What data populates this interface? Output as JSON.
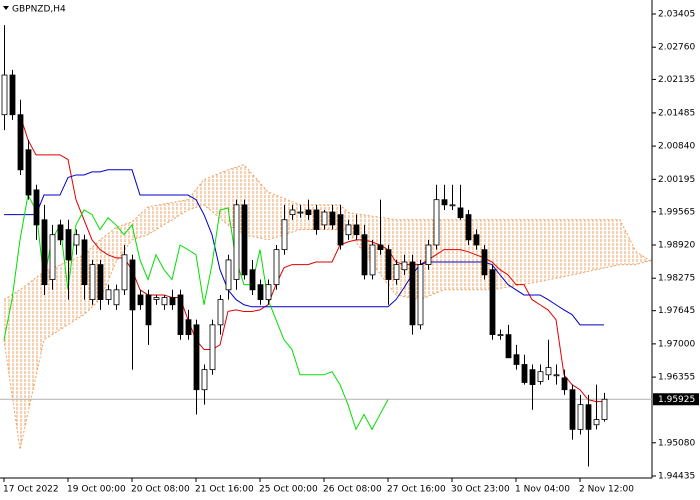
{
  "chart_data": {
    "type": "candlestick",
    "title": "GBPNZD,H4",
    "categories": [
      "17 Oct 2022",
      null,
      null,
      null,
      null,
      null,
      null,
      null,
      "19 Oct 00:00",
      null,
      null,
      null,
      null,
      null,
      null,
      null,
      "20 Oct 08:00",
      null,
      null,
      null,
      null,
      null,
      null,
      null,
      "21 Oct 16:00",
      null,
      null,
      null,
      null,
      null,
      null,
      null,
      "25 Oct 00:00",
      null,
      null,
      null,
      null,
      null,
      null,
      null,
      "26 Oct 08:00",
      null,
      null,
      null,
      null,
      null,
      null,
      null,
      "27 Oct 16:00",
      null,
      null,
      null,
      null,
      null,
      null,
      null,
      "30 Oct 23:00",
      null,
      null,
      null,
      null,
      null,
      null,
      null,
      "1 Nov 04:00",
      null,
      null,
      null,
      null,
      null,
      null,
      null,
      "2 Nov 12:00",
      null,
      null,
      null
    ],
    "open": [
      2.0145,
      2.0222,
      2.0145,
      2.0077,
      1.9999,
      1.9941,
      1.9825,
      1.9931,
      1.9922,
      1.9892,
      1.9902,
      1.9786,
      1.9854,
      1.9786,
      1.9776,
      1.9805,
      1.9863,
      1.9795,
      1.9795,
      1.9786,
      1.9776,
      1.979,
      1.9795,
      1.9747,
      1.9737,
      1.9611,
      1.965,
      1.9737,
      1.9805,
      1.9825,
      1.997,
      1.9844,
      1.9815,
      1.9786,
      1.9815,
      1.9883,
      1.9951,
      1.9956,
      1.996,
      1.996,
      1.9931,
      1.9956,
      1.9951,
      1.9912,
      1.9931,
      1.9912,
      1.9834,
      1.9892,
      1.9883,
      1.9825,
      1.9844,
      1.9859,
      1.9737,
      1.9854,
      1.9892,
      1.998,
      1.997,
      1.9964,
      1.9951,
      1.9912,
      1.9883,
      1.9844,
      1.9718,
      1.9718,
      1.9679,
      1.966,
      1.965,
      1.9627,
      1.964,
      1.964,
      1.9634,
      1.9611,
      1.9534,
      1.9582,
      1.9543,
      1.9553
    ],
    "high": [
      2.0319,
      2.0232,
      2.0174,
      2.0096,
      2.0009,
      1.997,
      1.9931,
      1.9941,
      1.9941,
      1.9922,
      1.9912,
      1.9863,
      1.9863,
      1.9815,
      1.9815,
      1.9892,
      1.9873,
      1.9805,
      1.9805,
      1.9795,
      1.9795,
      1.9805,
      1.9805,
      1.9766,
      1.9747,
      1.966,
      1.9747,
      1.9795,
      1.9873,
      1.998,
      1.998,
      1.9863,
      1.9825,
      1.9825,
      1.9892,
      1.997,
      1.997,
      1.997,
      1.998,
      1.997,
      1.996,
      1.997,
      1.997,
      1.9941,
      1.9951,
      1.9931,
      1.9902,
      1.998,
      1.9892,
      1.9863,
      1.9873,
      1.9873,
      1.9863,
      1.9902,
      2.0009,
      2.0009,
      2.0009,
      2.0009,
      1.996,
      1.9922,
      1.9892,
      1.9854,
      1.9728,
      1.9737,
      1.9698,
      1.9679,
      1.966,
      1.966,
      1.9708,
      1.966,
      1.965,
      1.9621,
      1.9601,
      1.9601,
      1.9621,
      1.9605
    ],
    "low": [
      2.0115,
      2.0135,
      2.0028,
      1.998,
      1.9902,
      1.9795,
      1.9805,
      1.9892,
      1.9786,
      1.9873,
      1.9786,
      1.9776,
      1.9766,
      1.9776,
      1.9766,
      1.9795,
      1.965,
      1.9766,
      1.9698,
      1.9776,
      1.9766,
      1.9766,
      1.9708,
      1.9708,
      1.9563,
      1.9582,
      1.964,
      1.9718,
      1.9786,
      1.9805,
      1.9825,
      1.9795,
      1.9776,
      1.9776,
      1.9805,
      1.9873,
      1.9941,
      1.9945,
      1.9941,
      1.9912,
      1.9922,
      1.9922,
      1.9883,
      1.9902,
      1.9902,
      1.9825,
      1.9825,
      1.9873,
      1.9776,
      1.9815,
      1.9834,
      1.9718,
      1.9728,
      1.9844,
      1.9883,
      1.996,
      1.996,
      1.9941,
      1.9892,
      1.9883,
      1.9825,
      1.9708,
      1.9708,
      1.9673,
      1.965,
      1.9621,
      1.9572,
      1.9621,
      1.963,
      1.9621,
      1.9601,
      1.9514,
      1.9524,
      1.9462,
      1.9534,
      1.9549
    ],
    "close": [
      2.0222,
      2.0145,
      2.0038,
      1.9989,
      1.9931,
      1.9815,
      1.9912,
      1.9902,
      1.9863,
      1.9912,
      1.9815,
      1.9854,
      1.9786,
      1.9805,
      1.9805,
      1.9873,
      1.9766,
      1.9776,
      1.9737,
      1.979,
      1.979,
      1.9776,
      1.9718,
      1.9718,
      1.9611,
      1.965,
      1.9737,
      1.9786,
      1.9863,
      1.997,
      1.9834,
      1.9805,
      1.9786,
      1.9815,
      1.9883,
      1.9941,
      1.996,
      1.9956,
      1.9951,
      1.9922,
      1.9956,
      1.9931,
      1.9892,
      1.9931,
      1.9912,
      1.9834,
      1.9892,
      1.9883,
      1.9825,
      1.9854,
      1.9859,
      1.9737,
      1.9854,
      1.9892,
      1.998,
      1.997,
      1.997,
      1.9945,
      1.9902,
      1.9892,
      1.9834,
      1.9718,
      1.9718,
      1.9673,
      1.966,
      1.9625,
      1.9621,
      1.9646,
      1.9654,
      1.964,
      1.9611,
      1.9534,
      1.9582,
      1.9534,
      1.9553,
      1.95925
    ],
    "lines": [
      {
        "color": "#e00000",
        "values": [
          null,
          null,
          2.0145,
          2.0096,
          2.0067,
          2.0067,
          2.0067,
          2.0067,
          2.0058,
          1.998,
          1.9941,
          1.9902,
          1.9883,
          1.9873,
          1.9867,
          1.9867,
          1.9844,
          1.9805,
          1.9795,
          1.9795,
          1.9795,
          1.979,
          1.979,
          1.9747,
          1.9708,
          1.9689,
          1.9689,
          1.9698,
          1.9763,
          1.9766,
          1.9763,
          1.9763,
          1.9766,
          1.9776,
          1.9815,
          1.9848,
          1.9854,
          1.9854,
          1.9854,
          1.9859,
          1.9859,
          1.9859,
          1.9892,
          1.9898,
          1.9902,
          1.9902,
          1.9898,
          1.9892,
          1.9883,
          1.9859,
          1.9854,
          1.9854,
          1.9854,
          1.9863,
          1.9873,
          1.9883,
          1.9883,
          1.9883,
          1.9879,
          1.9873,
          1.9867,
          1.9859,
          1.9844,
          1.9834,
          1.9815,
          1.9815,
          1.9786,
          1.9776,
          1.9766,
          1.9747,
          1.964,
          1.9621,
          1.9611,
          1.9592,
          1.9588,
          1.9588
        ]
      },
      {
        "color": "#0000c8",
        "values": [
          1.9951,
          1.9951,
          1.9951,
          1.9951,
          1.9951,
          1.9989,
          1.9989,
          1.9989,
          2.0023,
          2.0028,
          2.0028,
          2.0034,
          2.0034,
          2.0038,
          2.0038,
          2.0038,
          2.0038,
          1.9989,
          1.9989,
          1.9989,
          1.9989,
          1.9989,
          1.9989,
          1.9989,
          1.998,
          1.9951,
          1.9912,
          1.9844,
          1.9805,
          1.9786,
          1.9776,
          1.9772,
          1.9772,
          1.9772,
          1.9772,
          1.9772,
          1.9772,
          1.9772,
          1.9772,
          1.9772,
          1.9772,
          1.9772,
          1.9772,
          1.9772,
          1.9772,
          1.9772,
          1.9772,
          1.9772,
          1.9772,
          1.9786,
          1.9809,
          1.9834,
          1.9854,
          1.9859,
          1.9859,
          1.9859,
          1.9859,
          1.9859,
          1.9859,
          1.9859,
          1.9859,
          1.9854,
          1.9834,
          1.9815,
          1.9805,
          1.9795,
          1.9795,
          1.9795,
          1.9786,
          1.9776,
          1.9766,
          1.9757,
          1.9737,
          1.9737,
          1.9737,
          1.9737
        ]
      },
      {
        "color": "#00e000",
        "values": [
          1.9708,
          1.9786,
          1.9902,
          1.9989,
          1.996,
          1.9825,
          1.9902,
          1.9931,
          1.9805,
          1.9931,
          1.996,
          1.9951,
          1.9922,
          1.9945,
          1.9931,
          1.9912,
          1.9931,
          1.9863,
          1.9825,
          1.9873,
          1.9844,
          1.9825,
          1.9892,
          1.9883,
          1.9873,
          1.9776,
          1.9854,
          1.996,
          1.9964,
          1.9863,
          1.9815,
          1.9815,
          1.9883,
          1.9786,
          1.9747,
          1.9708,
          1.9689,
          1.964,
          1.964,
          1.964,
          1.964,
          1.9646,
          1.9621,
          1.9582,
          1.9534,
          1.9563,
          1.9534,
          1.9563,
          1.9592,
          null,
          null,
          null,
          null,
          null,
          null,
          null,
          null,
          null,
          null,
          null,
          null,
          null,
          null,
          null,
          null,
          null,
          null,
          null,
          null,
          null,
          null,
          null,
          null,
          null,
          null,
          null
        ]
      }
    ],
    "cloud": {
      "color": "#f0a060",
      "x": [
        0,
        2,
        5,
        10,
        12,
        14,
        16,
        18,
        23,
        25,
        28,
        30,
        33,
        37,
        42,
        43,
        49,
        52,
        55,
        61,
        67,
        71,
        77,
        79,
        81
      ],
      "span_a": [
        1.9786,
        1.9805,
        1.984,
        1.9873,
        1.9902,
        1.9926,
        1.9937,
        1.9966,
        1.998,
        2.0019,
        2.0038,
        2.0048,
        1.9995,
        1.997,
        1.997,
        1.9955,
        1.9941,
        1.9941,
        1.9941,
        1.9941,
        1.9941,
        1.9941,
        1.9941,
        1.9879,
        1.9859
      ],
      "span_b": [
        1.9708,
        1.9495,
        1.9708,
        1.9757,
        1.9786,
        1.9859,
        1.9902,
        1.9912,
        1.996,
        1.997,
        1.9931,
        1.9912,
        1.9902,
        1.9922,
        1.9922,
        1.9918,
        1.9795,
        1.9786,
        1.9805,
        1.9805,
        1.9821,
        1.9834,
        1.9854,
        1.9854,
        1.9863
      ]
    },
    "last_price": 1.95925,
    "ylim": [
      1.94396,
      2.03677
    ],
    "yticks": [
      2.03405,
      {
        "value": 2.0276,
        "label": "2.02760"
      },
      2.02135,
      2.01485,
      {
        "value": 2.0084,
        "label": "2.00840"
      },
      2.00195,
      1.99565,
      {
        "value": 1.9892,
        "label": "1.98920"
      },
      1.98275,
      1.97645,
      {
        "value": 1.97,
        "label": "1.97000"
      },
      1.96355,
      {
        "value": 1.9508,
        "label": "1.95080"
      },
      1.94435
    ],
    "bull_color": "#ffffff",
    "bear_color": "#000000"
  }
}
